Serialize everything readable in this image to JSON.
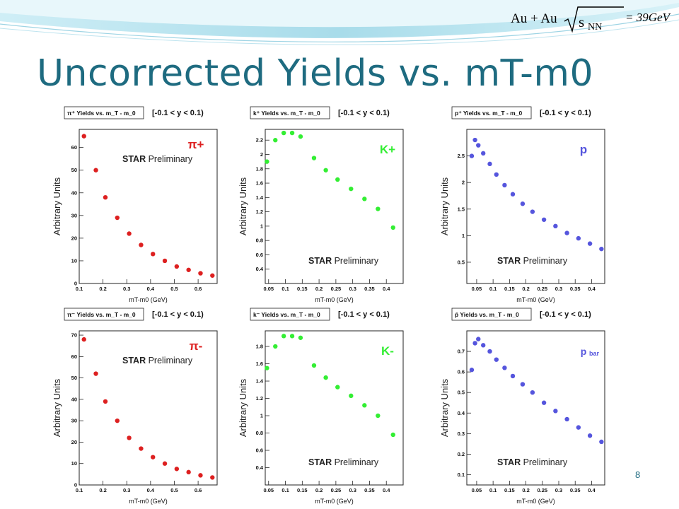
{
  "slide": {
    "title": "Uncorrected Yields vs. mT-m0",
    "formula": {
      "lhs": "Au + Au",
      "sqrt_body": "s",
      "subscript": "NN",
      "rhs": "= 39GeV"
    },
    "page_number": "8"
  },
  "colors": {
    "title": "#1e6b80",
    "pion": "#dd2020",
    "kaon": "#33ee33",
    "proton": "#5555dd"
  },
  "chart_data": [
    {
      "type": "scatter",
      "title": "π⁺ Yields vs. m_T - m_0",
      "rapidity": "[-0.1 < y < 0.1)",
      "particle": "π+",
      "particle_color": "#dd2020",
      "prelim": {
        "bold": "STAR",
        "rest": " Preliminary"
      },
      "xlabel": "mT-m0   (GeV)",
      "ylabel": "Arbitrary Units",
      "xlim": [
        0.1,
        0.68
      ],
      "ylim": [
        0,
        68
      ],
      "xticks": [
        0.1,
        0.2,
        0.3,
        0.4,
        0.5,
        0.6
      ],
      "xtick_labels": [
        "0.1",
        "0.2",
        "0.3",
        "0.4",
        "0.5",
        "0.6"
      ],
      "yticks": [
        0,
        10,
        20,
        30,
        40,
        50,
        60
      ],
      "ytick_labels": [
        "0",
        "10",
        "20",
        "30",
        "40",
        "50",
        "60"
      ],
      "x": [
        0.12,
        0.17,
        0.21,
        0.26,
        0.31,
        0.36,
        0.41,
        0.46,
        0.51,
        0.56,
        0.61,
        0.66
      ],
      "y": [
        65,
        50,
        38,
        29,
        22,
        17,
        13,
        10,
        7.5,
        6,
        4.5,
        3.5
      ]
    },
    {
      "type": "scatter",
      "title": "k⁺ Yields vs. m_T - m_0",
      "rapidity": "[-0.1 < y < 0.1)",
      "particle": "K+",
      "particle_color": "#33ee33",
      "prelim": {
        "bold": "STAR",
        "rest": " Preliminary"
      },
      "xlabel": "mT-m0   (GeV)",
      "ylabel": "Arbitrary Units",
      "xlim": [
        0.04,
        0.45
      ],
      "ylim": [
        0.2,
        2.35
      ],
      "xticks": [
        0.05,
        0.1,
        0.15,
        0.2,
        0.25,
        0.3,
        0.35,
        0.4
      ],
      "xtick_labels": [
        "0.05",
        "0.1",
        "0.15",
        "0.2",
        "0.25",
        "0.3",
        "0.35",
        "0.4"
      ],
      "yticks": [
        0.4,
        0.6,
        0.8,
        1,
        1.2,
        1.4,
        1.6,
        1.8,
        2,
        2.2
      ],
      "ytick_labels": [
        "0.4",
        "0.6",
        "0.8",
        "1",
        "1.2",
        "1.4",
        "1.6",
        "1.8",
        "2",
        "2.2"
      ],
      "x": [
        0.045,
        0.07,
        0.095,
        0.12,
        0.145,
        0.185,
        0.22,
        0.255,
        0.295,
        0.335,
        0.375,
        0.42
      ],
      "y": [
        1.9,
        2.2,
        2.3,
        2.3,
        2.25,
        1.95,
        1.78,
        1.65,
        1.52,
        1.38,
        1.24,
        0.98
      ]
    },
    {
      "type": "scatter",
      "title": "p⁺ Yields vs. m_T - m_0",
      "rapidity": "[-0.1 < y < 0.1)",
      "particle": "p",
      "particle_color": "#5555dd",
      "prelim": {
        "bold": "STAR",
        "rest": " Preliminary"
      },
      "xlabel": "mT-m0   (GeV)",
      "ylabel": "Arbitrary Units",
      "xlim": [
        0.02,
        0.44
      ],
      "ylim": [
        0.1,
        3.0
      ],
      "xticks": [
        0.05,
        0.1,
        0.15,
        0.2,
        0.25,
        0.3,
        0.35,
        0.4
      ],
      "xtick_labels": [
        "0.05",
        "0.1",
        "0.15",
        "0.2",
        "0.25",
        "0.3",
        "0.35",
        "0.4"
      ],
      "yticks": [
        0.5,
        1,
        1.5,
        2,
        2.5
      ],
      "ytick_labels": [
        "0.5",
        "1",
        "1.5",
        "2",
        "2.5"
      ],
      "x": [
        0.035,
        0.045,
        0.055,
        0.07,
        0.09,
        0.11,
        0.135,
        0.16,
        0.19,
        0.22,
        0.255,
        0.29,
        0.325,
        0.36,
        0.395,
        0.43
      ],
      "y": [
        2.5,
        2.8,
        2.7,
        2.55,
        2.35,
        2.15,
        1.95,
        1.78,
        1.6,
        1.45,
        1.3,
        1.18,
        1.05,
        0.95,
        0.85,
        0.75
      ]
    },
    {
      "type": "scatter",
      "title": "π⁻ Yields vs. m_T - m_0",
      "rapidity": "[-0.1 < y < 0.1)",
      "particle": "π-",
      "particle_color": "#dd2020",
      "prelim": {
        "bold": "STAR",
        "rest": " Preliminary"
      },
      "xlabel": "mT-m0   (GeV)",
      "ylabel": "Arbitrary Units",
      "xlim": [
        0.1,
        0.68
      ],
      "ylim": [
        0,
        72
      ],
      "xticks": [
        0.1,
        0.2,
        0.3,
        0.4,
        0.5,
        0.6
      ],
      "xtick_labels": [
        "0.1",
        "0.2",
        "0.3",
        "0.4",
        "0.5",
        "0.6"
      ],
      "yticks": [
        0,
        10,
        20,
        30,
        40,
        50,
        60,
        70
      ],
      "ytick_labels": [
        "0",
        "10",
        "20",
        "30",
        "40",
        "50",
        "60",
        "70"
      ],
      "x": [
        0.12,
        0.17,
        0.21,
        0.26,
        0.31,
        0.36,
        0.41,
        0.46,
        0.51,
        0.56,
        0.61,
        0.66
      ],
      "y": [
        68,
        52,
        39,
        30,
        22,
        17,
        13,
        10,
        7.5,
        6,
        4.5,
        3.5
      ]
    },
    {
      "type": "scatter",
      "title": "k⁻ Yields vs. m_T - m_0",
      "rapidity": "[-0.1 < y < 0.1)",
      "particle": "K-",
      "particle_color": "#33ee33",
      "prelim": {
        "bold": "STAR",
        "rest": " Preliminary"
      },
      "xlabel": "mT-m0   (GeV)",
      "ylabel": "Arbitrary Units",
      "xlim": [
        0.04,
        0.45
      ],
      "ylim": [
        0.2,
        1.98
      ],
      "xticks": [
        0.05,
        0.1,
        0.15,
        0.2,
        0.25,
        0.3,
        0.35,
        0.4
      ],
      "xtick_labels": [
        "0.05",
        "0.1",
        "0.15",
        "0.2",
        "0.25",
        "0.3",
        "0.35",
        "0.4"
      ],
      "yticks": [
        0.4,
        0.6,
        0.8,
        1,
        1.2,
        1.4,
        1.6,
        1.8
      ],
      "ytick_labels": [
        "0.4",
        "0.6",
        "0.8",
        "1",
        "1.2",
        "1.4",
        "1.6",
        "1.8"
      ],
      "x": [
        0.045,
        0.07,
        0.095,
        0.12,
        0.145,
        0.185,
        0.22,
        0.255,
        0.295,
        0.335,
        0.375,
        0.42
      ],
      "y": [
        1.55,
        1.8,
        1.92,
        1.92,
        1.9,
        1.58,
        1.44,
        1.33,
        1.23,
        1.12,
        1.0,
        0.78
      ]
    },
    {
      "type": "scatter",
      "title": "p̄ Yields vs. m_T - m_0",
      "rapidity": "[-0.1 < y < 0.1)",
      "particle": "p",
      "particle_sub": "bar",
      "particle_color": "#5555dd",
      "prelim": {
        "bold": "STAR",
        "rest": " Preliminary"
      },
      "xlabel": "mT-m0   (GeV)",
      "ylabel": "Arbitrary Units",
      "xlim": [
        0.02,
        0.44
      ],
      "ylim": [
        0.05,
        0.8
      ],
      "xticks": [
        0.05,
        0.1,
        0.15,
        0.2,
        0.25,
        0.3,
        0.35,
        0.4
      ],
      "xtick_labels": [
        "0.05",
        "0.1",
        "0.15",
        "0.2",
        "0.25",
        "0.3",
        "0.35",
        "0.4"
      ],
      "yticks": [
        0.1,
        0.2,
        0.3,
        0.4,
        0.5,
        0.6,
        0.7
      ],
      "ytick_labels": [
        "0.1",
        "0.2",
        "0.3",
        "0.4",
        "0.5",
        "0.6",
        "0.7"
      ],
      "x": [
        0.035,
        0.045,
        0.055,
        0.07,
        0.09,
        0.11,
        0.135,
        0.16,
        0.19,
        0.22,
        0.255,
        0.29,
        0.325,
        0.36,
        0.395,
        0.43
      ],
      "y": [
        0.61,
        0.74,
        0.76,
        0.73,
        0.7,
        0.66,
        0.62,
        0.58,
        0.54,
        0.5,
        0.45,
        0.41,
        0.37,
        0.33,
        0.29,
        0.26
      ]
    }
  ]
}
